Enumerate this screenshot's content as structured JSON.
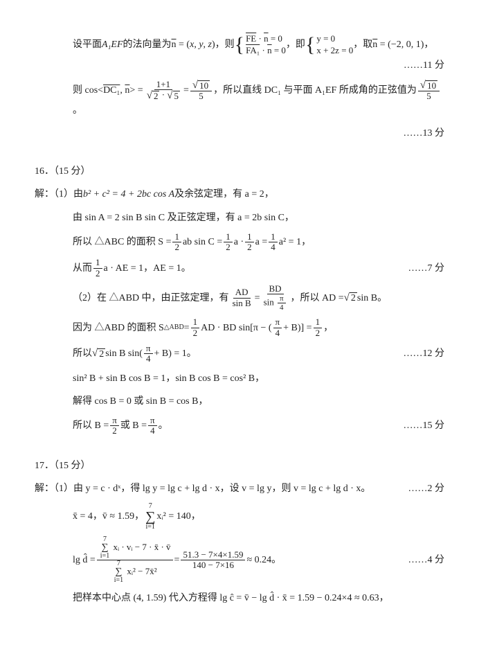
{
  "p15": {
    "l1a": "设平面 ",
    "l1b": " 的法向量为 ",
    "l1c": "，则 ",
    "l1d": "，即 ",
    "l1e": "，取 ",
    "l1f": "，",
    "plane": "A₁EF",
    "nvec": "n = (x, y, z)",
    "sys1a": "FE · n = 0",
    "sys1b": "FA₁ · n = 0",
    "sys2a": "y = 0",
    "sys2b": "x + 2z = 0",
    "ntake": "n = (−2, 0, 1)",
    "s11": "……11 分",
    "l2a": "则 cos<",
    "l2sym": "DC₁",
    "l2mid": ", n> = ",
    "fr1n": "1+1",
    "fr1d_a": "2",
    "fr1d_b": "5",
    "fr2n": "10",
    "fr2d": "5",
    "l2b": "，所以直线 DC₁ 与平面 A₁EF 所成角的正弦值为 ",
    "l2c": "。",
    "s13": "……13 分"
  },
  "p16": {
    "head": "16．（15 分）",
    "l1a": "解：（1）由 ",
    "l1eq": "b² + c² = 4 + 2bc cos A",
    "l1b": " 及余弦定理，有 a = 2，",
    "l2a": "由 sin A = 2 sin B sin C 及正弦定理，有 a = 2b sin C，",
    "l3a": "所以 △ABC 的面积 S = ",
    "half": "1",
    "two": "2",
    "l3b": "ab sin C = ",
    "l3c": "a · ",
    "l3d": "a = ",
    "quarter_n": "1",
    "quarter_d": "4",
    "l3e": "a² = 1，",
    "l4a": "从而 ",
    "l4b": "a · AE = 1，AE = 1。",
    "s7": "……7 分",
    "l5a": "（2）在 △ABD 中，由正弦定理，有 ",
    "l5frnA": "AD",
    "l5frdA": "sin B",
    "l5frnB": "BD",
    "l5b": "，所以 AD = ",
    "l5c": " sin B。",
    "sqrt2": "2",
    "pi4n": "π",
    "pi4d": "4",
    "l6a": "因为 △ABD 的面积 S",
    "l6sub": "△ABD",
    "l6b": " = ",
    "l6c": "AD · BD sin[π − (",
    "l6d": " + B)] = ",
    "l7a": "所以 ",
    "l7b": " sin B sin(",
    "l7c": " + B) = 1。",
    "s12": "……12 分",
    "l8": "sin² B + sin B cos B = 1，sin B cos B = cos² B，",
    "l9": "解得 cos B = 0 或 sin B = cos B，",
    "l10a": "所以 B = ",
    "pi2n": "π",
    "pi2d": "2",
    "l10b": " 或 B = ",
    "l10c": "。",
    "s15": "……15 分"
  },
  "p17": {
    "head": "17．（15 分）",
    "l1a": "解：（1）由 y = c · dˣ，得 lg y = lg c + lg d · x，设 v = lg y，则 v = lg c + lg d · x。",
    "s2": "……2 分",
    "l2a": "x̄ = 4，v̄ ≈ 1.59，",
    "sum_top": "7",
    "sum_bot": "i=1",
    "l2b": " xᵢ² = 140，",
    "l3a": "lg d̂ = ",
    "fr_top_a": " xᵢ · vᵢ − 7 · x̄ · v̄",
    "fr_bot_a": " xᵢ² − 7x̄²",
    "l3b": " = ",
    "fr2n": "51.3 − 7×4×1.59",
    "fr2d": "140 − 7×16",
    "l3c": " ≈ 0.24。",
    "s4": "……4 分",
    "l4": "把样本中心点 (4, 1.59) 代入方程得 lg ĉ = v̄ − lg d̂ · x̄ = 1.59 − 0.24×4 ≈ 0.63，"
  }
}
